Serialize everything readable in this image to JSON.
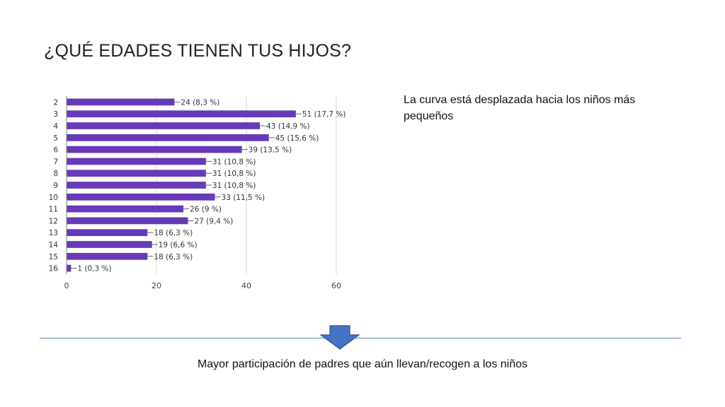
{
  "slide": {
    "title": "¿QUÉ EDADES TIENEN TUS HIJOS?",
    "note": "La curva está desplazada hacia los niños más pequeños",
    "conclusion": "Mayor participación de padres que aún llevan/recogen a los niños"
  },
  "colors": {
    "bar": "#673ab7",
    "divider": "#5b7fb8",
    "arrow_fill": "#4472c4",
    "arrow_stroke": "#2f528f"
  },
  "icons": {
    "arrow": "down-arrow-icon"
  },
  "chart_data": {
    "type": "bar",
    "orientation": "horizontal",
    "categories": [
      "2",
      "3",
      "4",
      "5",
      "6",
      "7",
      "8",
      "9",
      "10",
      "11",
      "12",
      "13",
      "14",
      "15",
      "16"
    ],
    "values": [
      24,
      51,
      43,
      45,
      39,
      31,
      31,
      31,
      33,
      26,
      27,
      18,
      19,
      18,
      1
    ],
    "labels": [
      "24 (8,3 %)",
      "51 (17,7 %)",
      "43 (14,9 %)",
      "45 (15,6 %)",
      "39 (13,5 %)",
      "31 (10,8 %)",
      "31 (10,8 %)",
      "31 (10,8 %)",
      "33 (11,5 %)",
      "26 (9 %)",
      "27 (9,4 %)",
      "18 (6,3 %)",
      "19 (6,6 %)",
      "18 (6,3 %)",
      "1 (0,3 %)"
    ],
    "xlim": [
      0,
      60
    ],
    "xticks": [
      "0",
      "20",
      "40",
      "60"
    ],
    "grid": true,
    "legend": false
  }
}
